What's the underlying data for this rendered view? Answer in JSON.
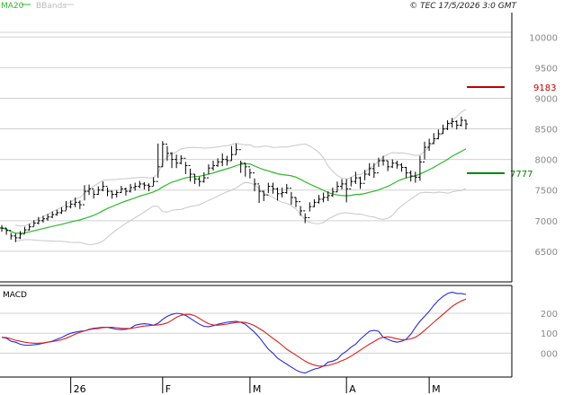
{
  "header": {
    "ma_label": "MA20",
    "bb_label": "BBands",
    "copyright": "© TEC 17/5/2026 3:0 GMT"
  },
  "colors": {
    "ma": "#2db82d",
    "bbands": "#c8c8c8",
    "macd": "#2a2ad8",
    "signal": "#d82020",
    "price": "#000000",
    "resistance": "#c00000",
    "support": "#008000",
    "grid": "#d0d0d0",
    "axis": "#000000"
  },
  "macd_panel": {
    "title": "MACD"
  },
  "chart_data": [
    {
      "type": "ohlc",
      "name": "price",
      "ylim": [
        6000,
        10400
      ],
      "yticks": [
        6500,
        7000,
        7500,
        8000,
        8500,
        9000,
        9500,
        10000
      ],
      "ytick_labels": [
        "6500",
        "7000",
        "7500",
        "8000",
        "8500",
        "9000",
        "9500",
        "10000"
      ],
      "grid": true,
      "xticks": [
        {
          "label": "26",
          "index": 15
        },
        {
          "label": "F",
          "index": 35
        },
        {
          "label": "M",
          "index": 54
        },
        {
          "label": "A",
          "index": 75
        },
        {
          "label": "M",
          "index": 93
        }
      ],
      "levels": [
        {
          "label": "9183",
          "value": 9183,
          "role": "resistance"
        },
        {
          "label": "7777",
          "value": 7777,
          "role": "support"
        }
      ],
      "close": [
        6880,
        6840,
        6750,
        6720,
        6780,
        6850,
        6900,
        6960,
        7000,
        7030,
        7060,
        7100,
        7130,
        7160,
        7230,
        7270,
        7300,
        7260,
        7480,
        7520,
        7430,
        7500,
        7560,
        7480,
        7430,
        7460,
        7520,
        7480,
        7540,
        7560,
        7600,
        7580,
        7560,
        7640,
        7880,
        8250,
        8100,
        8000,
        7940,
        8020,
        7900,
        7760,
        7680,
        7640,
        7700,
        7860,
        7900,
        7960,
        8000,
        7980,
        8080,
        8160,
        7940,
        7880,
        7780,
        7600,
        7480,
        7420,
        7560,
        7520,
        7440,
        7460,
        7530,
        7380,
        7310,
        7160,
        7050,
        7230,
        7300,
        7350,
        7380,
        7410,
        7470,
        7560,
        7600,
        7520,
        7640,
        7700,
        7610,
        7760,
        7850,
        7780,
        7980,
        7980,
        7880,
        7940,
        7910,
        7870,
        7780,
        7730,
        7710,
        7960,
        8200,
        8260,
        8340,
        8420,
        8500,
        8590,
        8620,
        8560,
        8640,
        8580
      ],
      "high": [
        6930,
        6880,
        6800,
        6790,
        6830,
        6900,
        6950,
        7010,
        7060,
        7080,
        7110,
        7150,
        7180,
        7220,
        7320,
        7330,
        7380,
        7330,
        7580,
        7590,
        7500,
        7560,
        7640,
        7540,
        7490,
        7500,
        7570,
        7540,
        7600,
        7620,
        7650,
        7630,
        7610,
        7710,
        8260,
        8300,
        8220,
        8120,
        8080,
        8070,
        7960,
        7850,
        7760,
        7720,
        7790,
        7920,
        7980,
        8020,
        8100,
        8060,
        8220,
        8260,
        7980,
        7940,
        7850,
        7690,
        7580,
        7490,
        7620,
        7620,
        7540,
        7540,
        7600,
        7470,
        7380,
        7240,
        7120,
        7300,
        7350,
        7420,
        7460,
        7480,
        7540,
        7640,
        7680,
        7680,
        7710,
        7800,
        7720,
        7830,
        7940,
        7940,
        8030,
        8060,
        7980,
        8000,
        7980,
        7940,
        7880,
        7820,
        7800,
        8060,
        8290,
        8340,
        8430,
        8490,
        8570,
        8640,
        8680,
        8640,
        8700,
        8650
      ],
      "low": [
        6820,
        6770,
        6690,
        6650,
        6700,
        6790,
        6840,
        6910,
        6940,
        6970,
        7000,
        7040,
        7080,
        7110,
        7170,
        7200,
        7220,
        7190,
        7330,
        7420,
        7360,
        7420,
        7480,
        7400,
        7360,
        7380,
        7450,
        7410,
        7460,
        7490,
        7530,
        7510,
        7480,
        7570,
        7700,
        7880,
        7980,
        7860,
        7860,
        7920,
        7760,
        7640,
        7600,
        7560,
        7620,
        7760,
        7820,
        7880,
        7890,
        7900,
        7980,
        8080,
        7780,
        7720,
        7690,
        7480,
        7290,
        7320,
        7450,
        7440,
        7330,
        7380,
        7440,
        7260,
        7220,
        7080,
        6960,
        7150,
        7220,
        7280,
        7300,
        7320,
        7390,
        7470,
        7510,
        7300,
        7560,
        7600,
        7520,
        7660,
        7730,
        7700,
        7880,
        7900,
        7810,
        7860,
        7850,
        7800,
        7700,
        7640,
        7620,
        7650,
        8000,
        8140,
        8250,
        8330,
        8420,
        8480,
        8520,
        8490,
        8540,
        8490
      ]
    },
    {
      "type": "line",
      "name": "macd",
      "ylim": [
        -120,
        340
      ],
      "yticks": [
        0,
        100,
        200
      ],
      "ytick_labels": [
        "000",
        "100",
        "200"
      ],
      "series": [
        {
          "role": "macd",
          "values": [
            80,
            75,
            60,
            55,
            45,
            40,
            40,
            42,
            45,
            50,
            55,
            60,
            70,
            78,
            90,
            100,
            105,
            110,
            112,
            120,
            125,
            127,
            130,
            130,
            125,
            120,
            118,
            120,
            125,
            140,
            145,
            148,
            145,
            140,
            150,
            170,
            185,
            195,
            200,
            198,
            190,
            175,
            160,
            145,
            135,
            133,
            138,
            145,
            150,
            155,
            158,
            160,
            155,
            145,
            125,
            105,
            80,
            50,
            20,
            0,
            -25,
            -40,
            -55,
            -70,
            -85,
            -95,
            -100,
            -90,
            -80,
            -75,
            -65,
            -45,
            -40,
            -30,
            -5,
            10,
            30,
            45,
            70,
            90,
            110,
            115,
            110,
            80,
            70,
            60,
            55,
            60,
            70,
            95,
            130,
            160,
            185,
            210,
            240,
            265,
            285,
            300,
            306,
            300,
            300,
            295
          ]
        },
        {
          "role": "signal",
          "values": [
            80,
            78,
            72,
            65,
            60,
            55,
            52,
            50,
            50,
            52,
            55,
            58,
            62,
            67,
            75,
            85,
            95,
            105,
            112,
            118,
            122,
            124,
            128,
            130,
            130,
            128,
            125,
            124,
            124,
            128,
            132,
            136,
            138,
            140,
            142,
            145,
            152,
            165,
            180,
            190,
            195,
            195,
            188,
            175,
            160,
            148,
            142,
            140,
            143,
            146,
            150,
            154,
            156,
            154,
            148,
            138,
            124,
            110,
            92,
            75,
            58,
            40,
            20,
            5,
            -10,
            -25,
            -40,
            -52,
            -60,
            -65,
            -65,
            -62,
            -55,
            -48,
            -38,
            -28,
            -15,
            0,
            15,
            30,
            45,
            58,
            72,
            80,
            82,
            78,
            72,
            68,
            68,
            72,
            80,
            95,
            115,
            135,
            155,
            175,
            195,
            215,
            235,
            250,
            262,
            272
          ]
        }
      ]
    }
  ]
}
